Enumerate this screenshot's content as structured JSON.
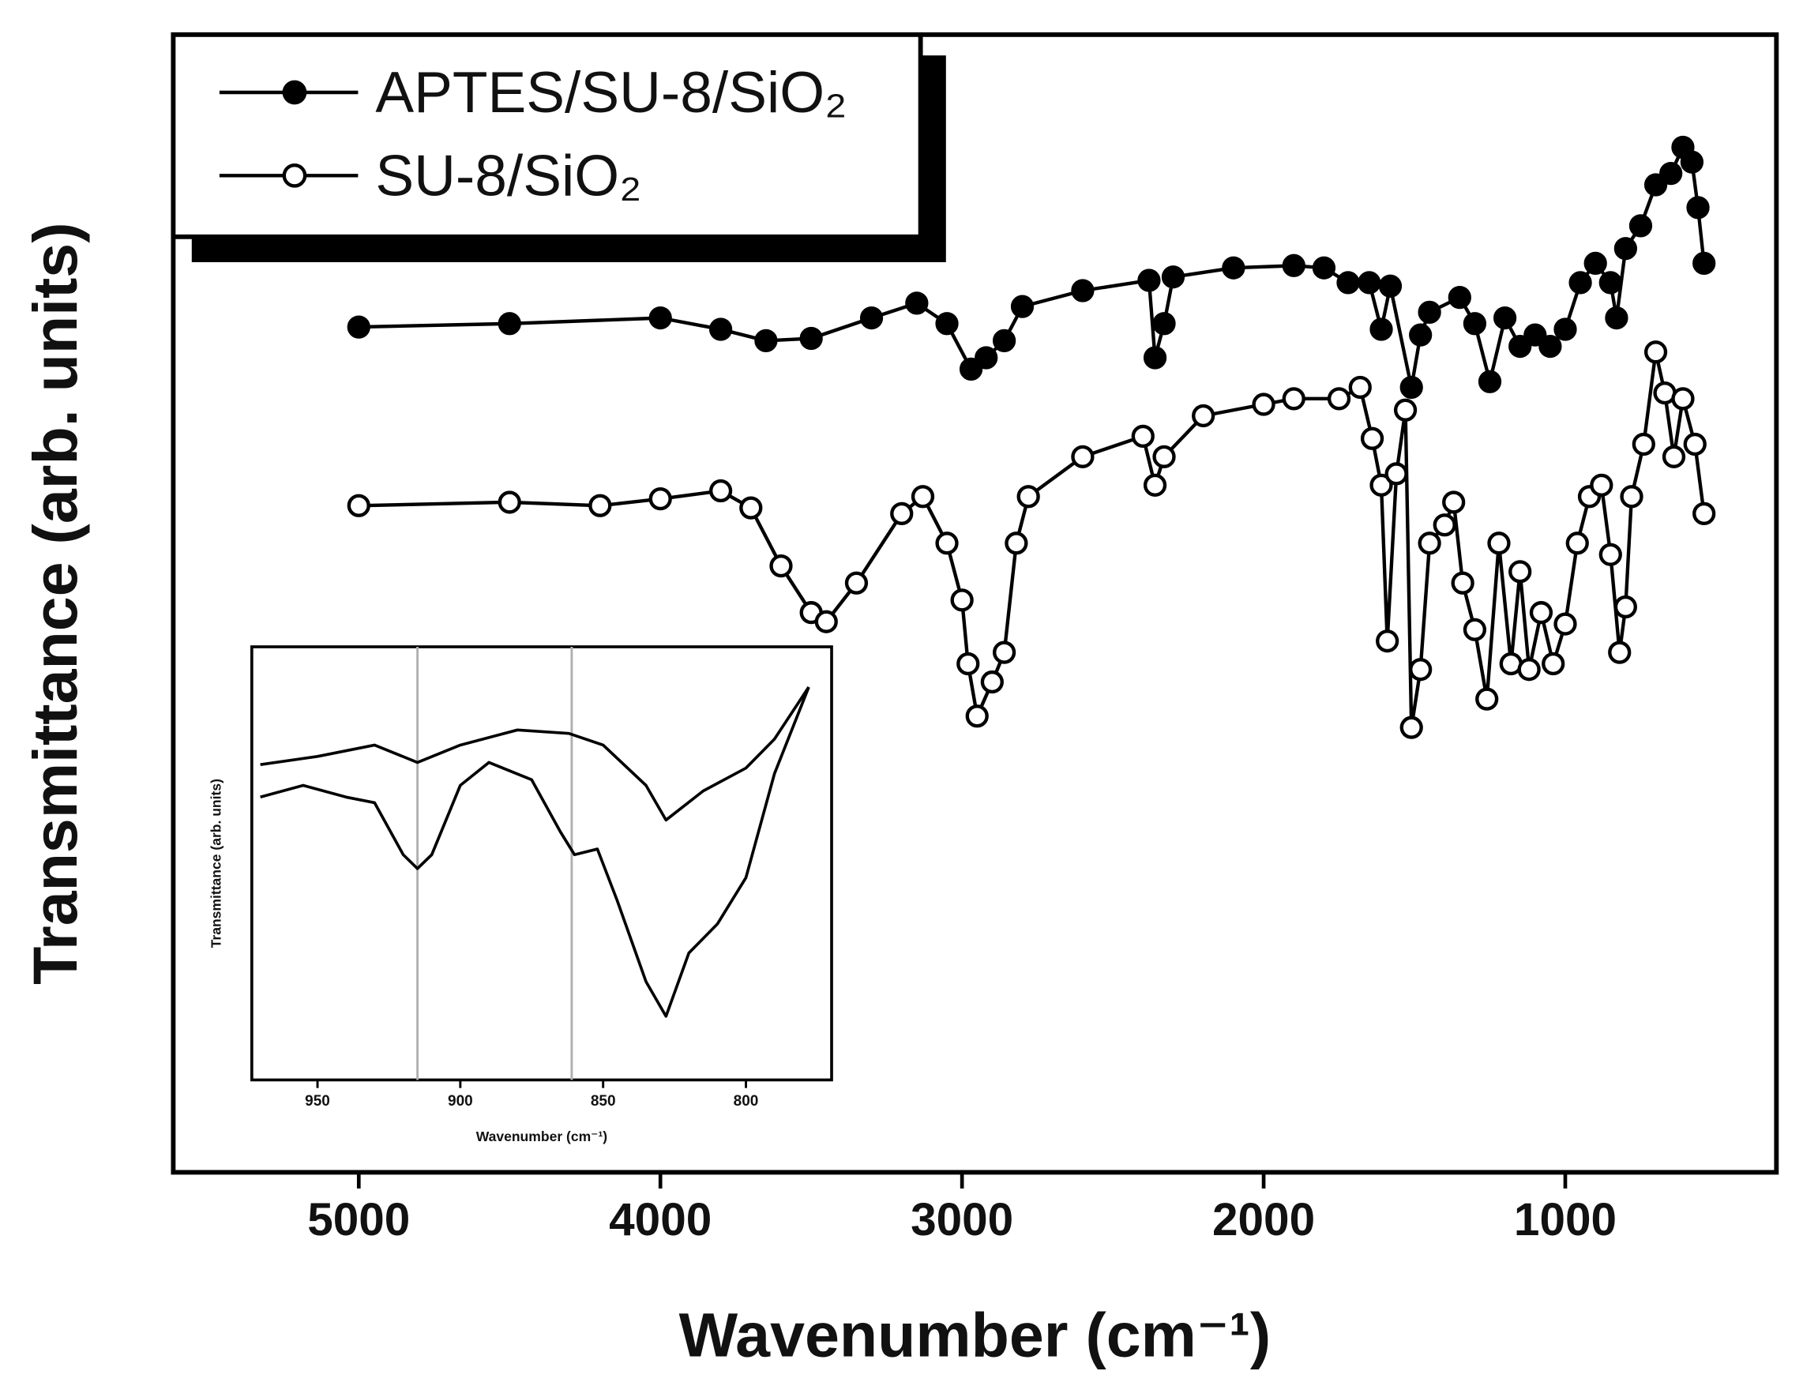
{
  "chart_data": [
    {
      "type": "line",
      "x_label": "Wavenumber (cm⁻¹)",
      "y_label": "Transmittance (arb. units)",
      "xlim": [
        5615,
        300
      ],
      "ylim": [
        0,
        100
      ],
      "xticks": [
        5000,
        4000,
        3000,
        2000,
        1000
      ],
      "legend": "top-left",
      "series": [
        {
          "name": "APTES/SU-8/SiO₂",
          "color": "#000000",
          "marker_fill": "#000000",
          "x": [
            5000,
            4500,
            4000,
            3800,
            3650,
            3500,
            3300,
            3150,
            3050,
            2970,
            2920,
            2860,
            2800,
            2600,
            2380,
            2360,
            2330,
            2300,
            2100,
            1900,
            1800,
            1720,
            1650,
            1610,
            1580,
            1510,
            1480,
            1450,
            1350,
            1300,
            1250,
            1200,
            1150,
            1100,
            1050,
            1000,
            950,
            900,
            850,
            830,
            800,
            750,
            700,
            650,
            610,
            580,
            560,
            540
          ],
          "values": [
            74.3,
            74.6,
            75.1,
            74.1,
            73.1,
            73.3,
            75.1,
            76.4,
            74.6,
            70.6,
            71.6,
            73.1,
            76.1,
            77.5,
            78.4,
            71.6,
            74.6,
            78.7,
            79.5,
            79.7,
            79.5,
            78.2,
            78.2,
            74.1,
            77.9,
            69.0,
            73.6,
            75.6,
            76.9,
            74.6,
            69.5,
            75.1,
            72.6,
            73.6,
            72.6,
            74.1,
            78.2,
            79.9,
            78.2,
            75.1,
            81.2,
            83.2,
            86.8,
            87.8,
            90.1,
            88.8,
            84.8,
            79.9
          ]
        },
        {
          "name": "SU-8/SiO₂",
          "color": "#000000",
          "marker_fill": "#ffffff",
          "x": [
            5000,
            4500,
            4200,
            4000,
            3800,
            3700,
            3600,
            3500,
            3450,
            3350,
            3200,
            3130,
            3050,
            3000,
            2980,
            2950,
            2900,
            2860,
            2820,
            2780,
            2600,
            2400,
            2360,
            2330,
            2200,
            2000,
            1900,
            1750,
            1680,
            1640,
            1610,
            1590,
            1560,
            1530,
            1510,
            1480,
            1450,
            1400,
            1370,
            1340,
            1300,
            1260,
            1220,
            1180,
            1150,
            1120,
            1080,
            1040,
            1000,
            960,
            920,
            880,
            850,
            820,
            800,
            780,
            740,
            700,
            670,
            640,
            610,
            570,
            540
          ],
          "values": [
            58.6,
            58.9,
            58.6,
            59.2,
            59.9,
            58.4,
            53.3,
            49.2,
            48.4,
            51.8,
            57.9,
            59.4,
            55.3,
            50.3,
            44.7,
            40.1,
            43.1,
            45.7,
            55.3,
            59.4,
            62.9,
            64.7,
            60.4,
            62.9,
            66.5,
            67.5,
            68.0,
            68.0,
            69.0,
            64.5,
            60.4,
            46.7,
            61.4,
            67.0,
            39.1,
            44.2,
            55.3,
            56.9,
            58.9,
            51.8,
            47.7,
            41.6,
            55.3,
            44.7,
            52.8,
            44.2,
            49.2,
            44.7,
            48.2,
            55.3,
            59.4,
            60.4,
            54.3,
            45.7,
            49.7,
            59.4,
            64.0,
            72.1,
            68.5,
            62.9,
            68.0,
            64.0,
            57.9
          ]
        }
      ]
    },
    {
      "type": "line",
      "x_label": "Wavenumber (cm⁻¹)",
      "y_label": "Transmittance (arb. units)",
      "xlim": [
        973,
        770
      ],
      "ylim": [
        0,
        100
      ],
      "xticks": [
        950,
        900,
        850,
        800
      ],
      "reference_lines": [
        915,
        861
      ],
      "reference_color": "#b0b0b0",
      "series": [
        {
          "color": "#000000",
          "x": [
            970,
            950,
            930,
            915,
            900,
            880,
            862,
            850,
            835,
            828,
            815,
            800,
            790,
            778
          ],
          "values": [
            72.8,
            74.7,
            77.3,
            73.3,
            77.3,
            80.8,
            80.0,
            77.3,
            68.0,
            60.0,
            66.7,
            72.0,
            78.7,
            90.7
          ]
        },
        {
          "color": "#000000",
          "x": [
            970,
            955,
            940,
            930,
            920,
            915,
            910,
            900,
            890,
            875,
            865,
            860,
            852,
            845,
            835,
            828,
            820,
            810,
            800,
            790,
            778
          ],
          "values": [
            65.3,
            68.0,
            65.3,
            64.0,
            52.0,
            48.8,
            52.0,
            68.0,
            73.3,
            69.3,
            57.3,
            52.0,
            53.3,
            41.3,
            22.7,
            14.7,
            29.3,
            36.0,
            46.7,
            70.7,
            90.7
          ]
        }
      ]
    }
  ]
}
